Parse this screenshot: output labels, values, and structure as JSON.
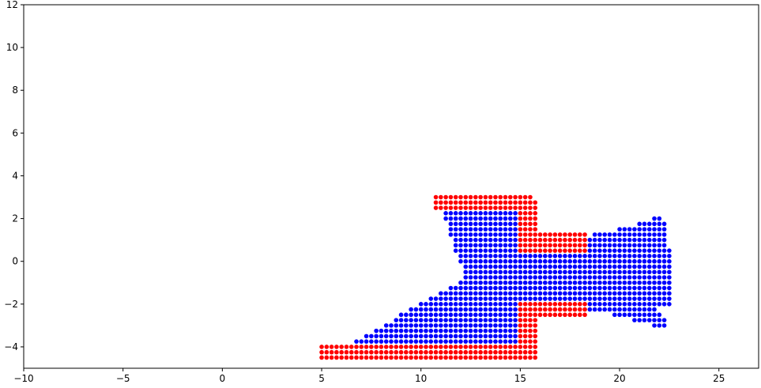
{
  "chart_data": {
    "type": "scatter",
    "title": "",
    "xlabel": "",
    "ylabel": "",
    "xlim": [
      -10,
      27
    ],
    "ylim": [
      -5,
      12
    ],
    "grid": false,
    "legend": "none",
    "x_ticks": [
      -10,
      -5,
      0,
      5,
      10,
      15,
      20,
      25
    ],
    "x_tick_labels": [
      "−10",
      "−5",
      "0",
      "5",
      "10",
      "15",
      "20",
      "25"
    ],
    "y_ticks": [
      -4,
      -2,
      0,
      2,
      4,
      6,
      8,
      10,
      12
    ],
    "y_tick_labels": [
      "−4",
      "−2",
      "0",
      "2",
      "4",
      "6",
      "8",
      "10",
      "12"
    ],
    "point_spacing": 0.25,
    "colors": {
      "blue": "#0000ff",
      "red": "#ff0000"
    },
    "series": [
      {
        "color": "#0000ff",
        "row_ranges": [
          {
            "y": 2.25,
            "x_start": 11.25,
            "x_end": 14.75
          },
          {
            "y": 2.0,
            "x_start": 11.25,
            "x_end": 14.75
          },
          {
            "y": 2.0,
            "x_start": 21.75,
            "x_end": 22.0
          },
          {
            "y": 1.75,
            "x_start": 11.5,
            "x_end": 14.75
          },
          {
            "y": 1.75,
            "x_start": 21.0,
            "x_end": 22.25
          },
          {
            "y": 1.5,
            "x_start": 11.5,
            "x_end": 14.75
          },
          {
            "y": 1.5,
            "x_start": 20.0,
            "x_end": 22.25
          },
          {
            "y": 1.25,
            "x_start": 11.5,
            "x_end": 14.75
          },
          {
            "y": 1.25,
            "x_start": 18.75,
            "x_end": 22.25
          },
          {
            "y": 1.0,
            "x_start": 11.75,
            "x_end": 14.75
          },
          {
            "y": 1.0,
            "x_start": 18.5,
            "x_end": 22.25
          },
          {
            "y": 0.75,
            "x_start": 11.75,
            "x_end": 14.75
          },
          {
            "y": 0.75,
            "x_start": 18.5,
            "x_end": 22.25
          },
          {
            "y": 0.5,
            "x_start": 11.75,
            "x_end": 14.75
          },
          {
            "y": 0.5,
            "x_start": 18.5,
            "x_end": 22.5
          },
          {
            "y": 0.25,
            "x_start": 12.0,
            "x_end": 22.5
          },
          {
            "y": 0.0,
            "x_start": 12.0,
            "x_end": 22.5
          },
          {
            "y": -0.25,
            "x_start": 12.25,
            "x_end": 22.5
          },
          {
            "y": -0.5,
            "x_start": 12.25,
            "x_end": 22.5
          },
          {
            "y": -0.75,
            "x_start": 12.25,
            "x_end": 22.5
          },
          {
            "y": -1.0,
            "x_start": 12.0,
            "x_end": 22.5
          },
          {
            "y": -1.25,
            "x_start": 11.5,
            "x_end": 22.5
          },
          {
            "y": -1.5,
            "x_start": 11.0,
            "x_end": 22.5
          },
          {
            "y": -1.75,
            "x_start": 10.5,
            "x_end": 22.5
          },
          {
            "y": -2.0,
            "x_start": 10.0,
            "x_end": 14.75
          },
          {
            "y": -2.0,
            "x_start": 18.5,
            "x_end": 22.5
          },
          {
            "y": -2.25,
            "x_start": 9.5,
            "x_end": 14.75
          },
          {
            "y": -2.25,
            "x_start": 18.5,
            "x_end": 21.75
          },
          {
            "y": -2.5,
            "x_start": 9.0,
            "x_end": 14.75
          },
          {
            "y": -2.5,
            "x_start": 19.75,
            "x_end": 22.0
          },
          {
            "y": -2.75,
            "x_start": 8.75,
            "x_end": 14.75
          },
          {
            "y": -2.75,
            "x_start": 20.75,
            "x_end": 22.25
          },
          {
            "y": -3.0,
            "x_start": 8.25,
            "x_end": 14.75
          },
          {
            "y": -3.0,
            "x_start": 21.75,
            "x_end": 22.25
          },
          {
            "y": -3.25,
            "x_start": 7.75,
            "x_end": 14.75
          },
          {
            "y": -3.5,
            "x_start": 7.25,
            "x_end": 14.75
          },
          {
            "y": -3.75,
            "x_start": 6.75,
            "x_end": 14.75
          }
        ]
      },
      {
        "color": "#ff0000",
        "row_ranges": [
          {
            "y": 3.0,
            "x_start": 10.75,
            "x_end": 15.5
          },
          {
            "y": 2.75,
            "x_start": 10.75,
            "x_end": 15.75
          },
          {
            "y": 2.5,
            "x_start": 10.75,
            "x_end": 15.75
          },
          {
            "y": 2.25,
            "x_start": 15.0,
            "x_end": 15.75
          },
          {
            "y": 2.0,
            "x_start": 15.0,
            "x_end": 15.75
          },
          {
            "y": 1.75,
            "x_start": 15.0,
            "x_end": 15.75
          },
          {
            "y": 1.5,
            "x_start": 15.0,
            "x_end": 15.75
          },
          {
            "y": 1.25,
            "x_start": 15.0,
            "x_end": 18.25
          },
          {
            "y": 1.0,
            "x_start": 15.0,
            "x_end": 18.25
          },
          {
            "y": 0.75,
            "x_start": 15.0,
            "x_end": 18.25
          },
          {
            "y": 0.5,
            "x_start": 15.0,
            "x_end": 18.25
          },
          {
            "y": -2.0,
            "x_start": 15.0,
            "x_end": 18.25
          },
          {
            "y": -2.25,
            "x_start": 15.0,
            "x_end": 18.25
          },
          {
            "y": -2.5,
            "x_start": 15.0,
            "x_end": 18.25
          },
          {
            "y": -2.75,
            "x_start": 15.0,
            "x_end": 15.75
          },
          {
            "y": -3.0,
            "x_start": 15.0,
            "x_end": 15.75
          },
          {
            "y": -3.25,
            "x_start": 15.0,
            "x_end": 15.75
          },
          {
            "y": -3.5,
            "x_start": 15.0,
            "x_end": 15.75
          },
          {
            "y": -3.75,
            "x_start": 15.0,
            "x_end": 15.75
          },
          {
            "y": -4.0,
            "x_start": 5.0,
            "x_end": 15.75
          },
          {
            "y": -4.25,
            "x_start": 5.0,
            "x_end": 15.75
          },
          {
            "y": -4.5,
            "x_start": 5.0,
            "x_end": 15.75
          }
        ]
      }
    ]
  }
}
